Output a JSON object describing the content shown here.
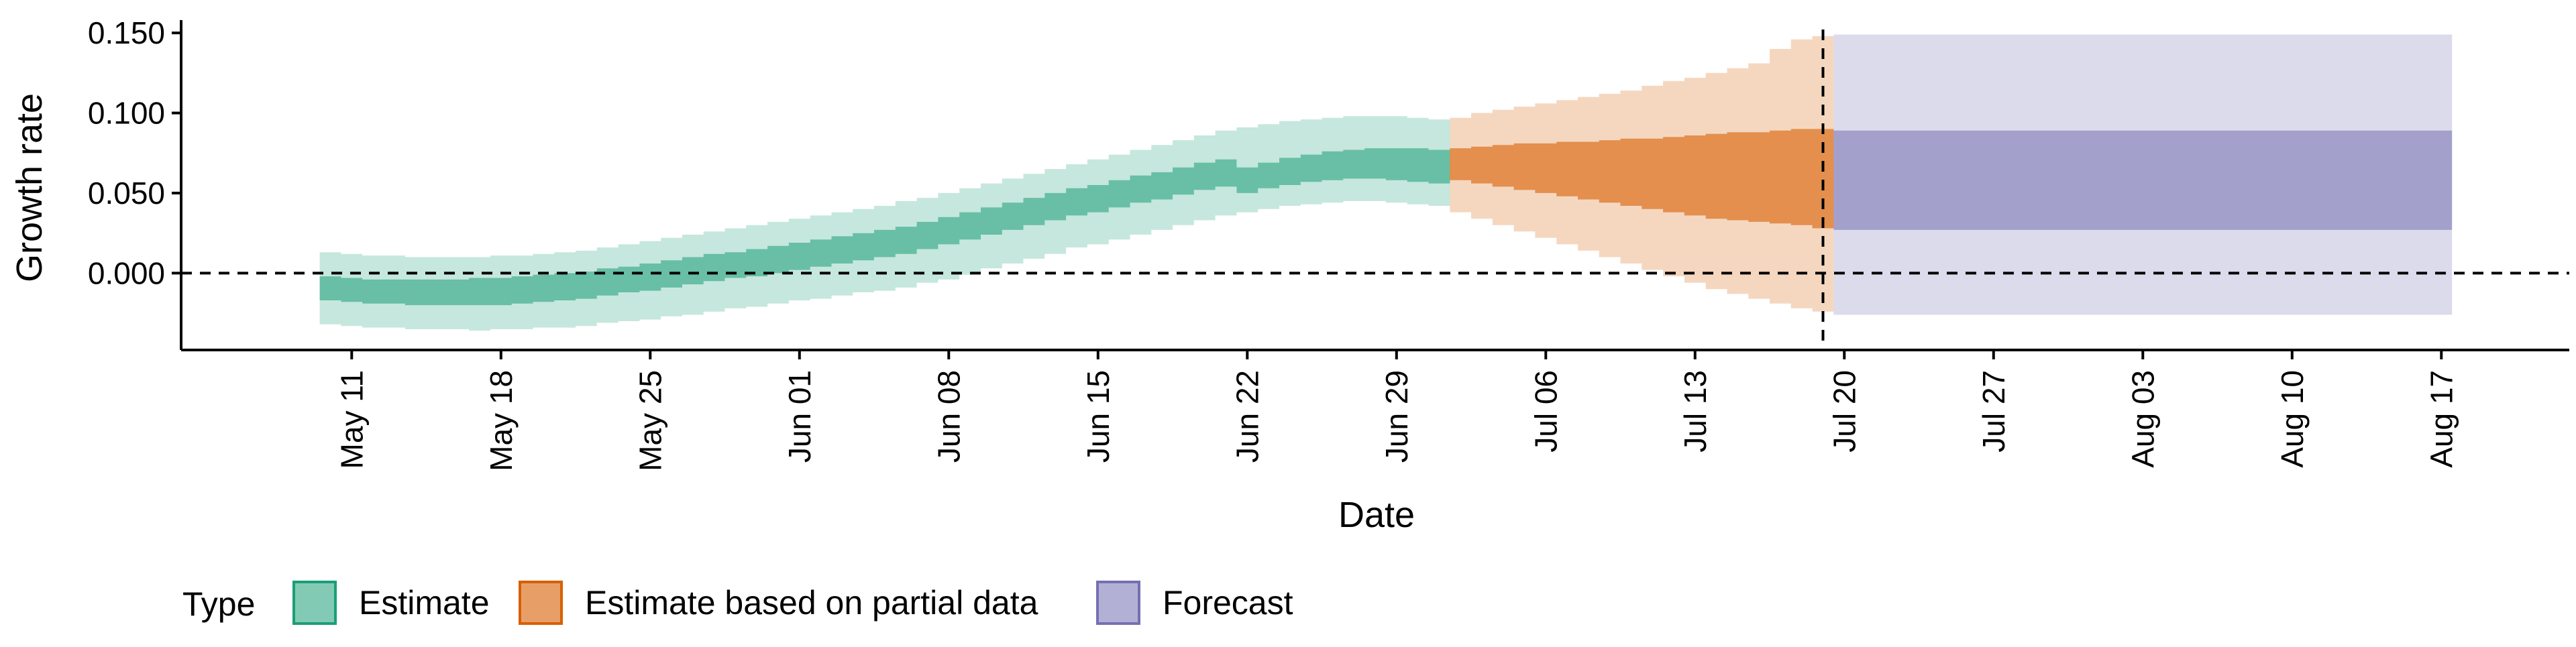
{
  "chart_data": {
    "type": "area",
    "title": "",
    "xlabel": "Date",
    "ylabel": "Growth rate",
    "ylim": [
      -0.048,
      0.158
    ],
    "xlim": [
      "2020-05-03",
      "2020-08-23"
    ],
    "y_ticks": [
      0.0,
      0.05,
      0.1,
      0.15
    ],
    "y_tick_labels": [
      "0.000",
      "0.050",
      "0.100",
      "0.150"
    ],
    "x_ticks": [
      "2020-05-11",
      "2020-05-18",
      "2020-05-25",
      "2020-06-01",
      "2020-06-08",
      "2020-06-15",
      "2020-06-22",
      "2020-06-29",
      "2020-07-06",
      "2020-07-13",
      "2020-07-20",
      "2020-07-27",
      "2020-08-03",
      "2020-08-10",
      "2020-08-17"
    ],
    "x_tick_labels": [
      "May 11",
      "May 18",
      "May 25",
      "Jun 01",
      "Jun 08",
      "Jun 15",
      "Jun 22",
      "Jun 29",
      "Jul 06",
      "Jul 13",
      "Jul 20",
      "Jul 27",
      "Aug 03",
      "Aug 10",
      "Aug 17"
    ],
    "reference_lines": {
      "horizontal_y": 0.0,
      "vertical_date": "2020-07-19"
    },
    "legend": {
      "title": "Type",
      "position": "bottom"
    },
    "series": [
      {
        "name": "Estimate",
        "fill": "#1b9e77",
        "outer_opacity": 0.25,
        "inner_opacity": 0.55,
        "x": [
          "2020-05-10",
          "2020-05-11",
          "2020-05-12",
          "2020-05-13",
          "2020-05-14",
          "2020-05-15",
          "2020-05-16",
          "2020-05-17",
          "2020-05-18",
          "2020-05-19",
          "2020-05-20",
          "2020-05-21",
          "2020-05-22",
          "2020-05-23",
          "2020-05-24",
          "2020-05-25",
          "2020-05-26",
          "2020-05-27",
          "2020-05-28",
          "2020-05-29",
          "2020-05-30",
          "2020-05-31",
          "2020-06-01",
          "2020-06-02",
          "2020-06-03",
          "2020-06-04",
          "2020-06-05",
          "2020-06-06",
          "2020-06-07",
          "2020-06-08",
          "2020-06-09",
          "2020-06-10",
          "2020-06-11",
          "2020-06-12",
          "2020-06-13",
          "2020-06-14",
          "2020-06-15",
          "2020-06-16",
          "2020-06-17",
          "2020-06-18",
          "2020-06-19",
          "2020-06-20",
          "2020-06-21",
          "2020-06-22",
          "2020-06-23",
          "2020-06-24",
          "2020-06-25",
          "2020-06-26",
          "2020-06-27",
          "2020-06-28",
          "2020-06-29",
          "2020-06-30",
          "2020-07-01"
        ],
        "lower_90": [
          -0.032,
          -0.033,
          -0.034,
          -0.034,
          -0.035,
          -0.035,
          -0.035,
          -0.036,
          -0.035,
          -0.035,
          -0.034,
          -0.034,
          -0.033,
          -0.031,
          -0.03,
          -0.029,
          -0.027,
          -0.026,
          -0.024,
          -0.022,
          -0.021,
          -0.019,
          -0.017,
          -0.016,
          -0.014,
          -0.012,
          -0.011,
          -0.009,
          -0.006,
          -0.004,
          -0.001,
          0.003,
          0.006,
          0.009,
          0.012,
          0.016,
          0.018,
          0.021,
          0.024,
          0.027,
          0.03,
          0.033,
          0.036,
          0.038,
          0.04,
          0.042,
          0.043,
          0.044,
          0.045,
          0.045,
          0.044,
          0.043,
          0.042
        ],
        "upper_90": [
          0.013,
          0.012,
          0.011,
          0.011,
          0.01,
          0.01,
          0.01,
          0.01,
          0.011,
          0.011,
          0.012,
          0.013,
          0.014,
          0.016,
          0.018,
          0.02,
          0.022,
          0.024,
          0.026,
          0.028,
          0.03,
          0.032,
          0.034,
          0.036,
          0.038,
          0.04,
          0.042,
          0.045,
          0.047,
          0.05,
          0.053,
          0.056,
          0.059,
          0.062,
          0.065,
          0.068,
          0.071,
          0.074,
          0.077,
          0.08,
          0.083,
          0.086,
          0.089,
          0.091,
          0.093,
          0.095,
          0.096,
          0.097,
          0.098,
          0.098,
          0.098,
          0.097,
          0.096
        ],
        "lower_50": [
          -0.017,
          -0.018,
          -0.019,
          -0.019,
          -0.02,
          -0.02,
          -0.02,
          -0.02,
          -0.02,
          -0.019,
          -0.018,
          -0.017,
          -0.016,
          -0.014,
          -0.012,
          -0.011,
          -0.009,
          -0.007,
          -0.005,
          -0.003,
          -0.002,
          0.0,
          0.002,
          0.004,
          0.006,
          0.008,
          0.01,
          0.012,
          0.015,
          0.018,
          0.021,
          0.024,
          0.027,
          0.03,
          0.033,
          0.036,
          0.038,
          0.041,
          0.044,
          0.046,
          0.049,
          0.052,
          0.054,
          0.05,
          0.053,
          0.055,
          0.057,
          0.058,
          0.059,
          0.059,
          0.058,
          0.057,
          0.056
        ],
        "upper_50": [
          -0.002,
          -0.003,
          -0.004,
          -0.004,
          -0.004,
          -0.004,
          -0.004,
          -0.003,
          -0.003,
          -0.002,
          -0.001,
          0.0,
          0.001,
          0.003,
          0.004,
          0.006,
          0.008,
          0.01,
          0.012,
          0.013,
          0.015,
          0.017,
          0.019,
          0.021,
          0.023,
          0.025,
          0.027,
          0.029,
          0.032,
          0.035,
          0.038,
          0.041,
          0.044,
          0.047,
          0.05,
          0.053,
          0.055,
          0.058,
          0.061,
          0.063,
          0.066,
          0.069,
          0.071,
          0.066,
          0.069,
          0.072,
          0.074,
          0.076,
          0.077,
          0.078,
          0.078,
          0.078,
          0.077
        ]
      },
      {
        "name": "Estimate based on partial data",
        "fill": "#d95f02",
        "outer_opacity": 0.25,
        "inner_opacity": 0.6,
        "x": [
          "2020-07-02",
          "2020-07-03",
          "2020-07-04",
          "2020-07-05",
          "2020-07-06",
          "2020-07-07",
          "2020-07-08",
          "2020-07-09",
          "2020-07-10",
          "2020-07-11",
          "2020-07-12",
          "2020-07-13",
          "2020-07-14",
          "2020-07-15",
          "2020-07-16",
          "2020-07-17",
          "2020-07-18",
          "2020-07-19"
        ],
        "lower_90": [
          0.038,
          0.034,
          0.03,
          0.026,
          0.022,
          0.018,
          0.014,
          0.01,
          0.006,
          0.002,
          -0.002,
          -0.006,
          -0.01,
          -0.013,
          -0.016,
          -0.019,
          -0.022,
          -0.024
        ],
        "upper_90": [
          0.097,
          0.1,
          0.102,
          0.104,
          0.106,
          0.108,
          0.11,
          0.112,
          0.114,
          0.117,
          0.12,
          0.122,
          0.125,
          0.128,
          0.131,
          0.14,
          0.146,
          0.148
        ],
        "lower_50": [
          0.058,
          0.056,
          0.054,
          0.052,
          0.05,
          0.048,
          0.046,
          0.044,
          0.042,
          0.04,
          0.038,
          0.036,
          0.034,
          0.033,
          0.032,
          0.031,
          0.03,
          0.028
        ],
        "upper_50": [
          0.078,
          0.079,
          0.08,
          0.081,
          0.081,
          0.082,
          0.082,
          0.083,
          0.084,
          0.084,
          0.085,
          0.086,
          0.087,
          0.088,
          0.088,
          0.089,
          0.09,
          0.09
        ]
      },
      {
        "name": "Forecast",
        "fill": "#7570b3",
        "outer_opacity": 0.25,
        "inner_opacity": 0.55,
        "x": [
          "2020-07-20",
          "2020-08-17"
        ],
        "lower_90": [
          -0.026,
          -0.026
        ],
        "upper_90": [
          0.149,
          0.149
        ],
        "lower_50": [
          0.027,
          0.027
        ],
        "upper_50": [
          0.089,
          0.089
        ]
      }
    ]
  }
}
